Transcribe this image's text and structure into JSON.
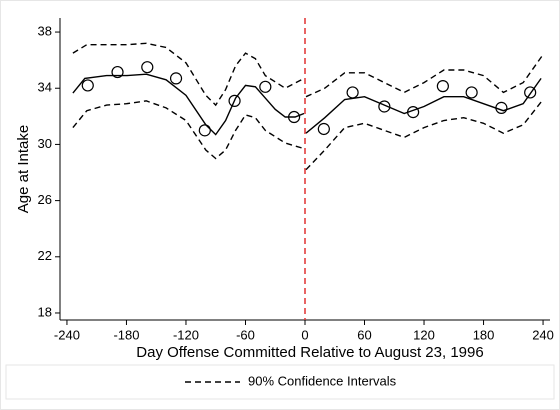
{
  "chart_data": {
    "type": "line",
    "x_label": "Day Offense Committed Relative to August 23, 1996",
    "y_label": "Age at Intake",
    "xlim": [
      -247,
      247
    ],
    "ylim": [
      17.5,
      39
    ],
    "xticks": [
      -240,
      -180,
      -120,
      -60,
      0,
      60,
      120,
      180,
      240
    ],
    "yticks": [
      18,
      22,
      26,
      30,
      34,
      38
    ],
    "grid": false,
    "legend": "bottom",
    "vline": {
      "x": 0,
      "color": "#e03030"
    },
    "series": [
      {
        "type": "scatter",
        "color": "#000000",
        "x": [
          -219,
          -189,
          -159,
          -130,
          -101,
          -71,
          -40,
          -11,
          19,
          48,
          80,
          109,
          139,
          168,
          198,
          227
        ],
        "values": [
          34.2,
          35.15,
          35.5,
          34.7,
          31.0,
          33.1,
          34.1,
          31.95,
          31.1,
          33.7,
          32.7,
          32.3,
          34.15,
          33.7,
          32.6,
          33.7
        ]
      },
      {
        "type": "line",
        "color": "#000000",
        "dash": false,
        "x": [
          -234,
          -222,
          -200,
          -180,
          -160,
          -140,
          -120,
          -100,
          -90,
          -80,
          -70,
          -60,
          -50,
          -40,
          -30,
          -20,
          -10,
          -1,
          0,
          1,
          20,
          40,
          60,
          80,
          100,
          120,
          140,
          160,
          180,
          200,
          220,
          238
        ],
        "values": [
          33.65,
          34.7,
          34.9,
          34.9,
          35.0,
          34.6,
          33.5,
          31.4,
          30.7,
          31.7,
          33.3,
          34.2,
          34.1,
          33.3,
          32.5,
          31.95,
          31.95,
          32.2,
          null,
          30.8,
          31.9,
          33.2,
          33.4,
          32.8,
          32.2,
          32.7,
          33.4,
          33.4,
          32.9,
          32.4,
          32.9,
          34.7
        ]
      },
      {
        "type": "line",
        "color": "#000000",
        "dash": true,
        "name": "90% Confidence Intervals",
        "x": [
          -234,
          -220,
          -180,
          -160,
          -140,
          -120,
          -100,
          -90,
          -80,
          -70,
          -60,
          -50,
          -40,
          -20,
          -1,
          0,
          1,
          20,
          40,
          60,
          80,
          100,
          120,
          140,
          160,
          180,
          200,
          220,
          240
        ],
        "values": [
          36.5,
          37.1,
          37.1,
          37.2,
          36.9,
          35.8,
          33.5,
          32.8,
          33.9,
          35.6,
          36.5,
          36.1,
          34.9,
          34.0,
          34.7,
          null,
          33.4,
          34.0,
          35.1,
          35.1,
          34.4,
          33.7,
          34.4,
          35.3,
          35.3,
          34.9,
          33.7,
          34.4,
          36.4
        ]
      },
      {
        "type": "line",
        "color": "#000000",
        "dash": true,
        "x": [
          -234,
          -220,
          -200,
          -180,
          -160,
          -140,
          -120,
          -100,
          -90,
          -80,
          -70,
          -60,
          -50,
          -40,
          -20,
          -1,
          0,
          1,
          20,
          40,
          60,
          80,
          100,
          120,
          140,
          160,
          180,
          200,
          220,
          240
        ],
        "values": [
          31.2,
          32.4,
          32.8,
          32.9,
          33.1,
          32.6,
          31.7,
          29.6,
          29.0,
          29.6,
          31.0,
          32.1,
          31.9,
          31.0,
          30.1,
          29.7,
          null,
          28.2,
          29.6,
          31.2,
          31.5,
          31.0,
          30.5,
          31.2,
          31.7,
          31.9,
          31.5,
          30.8,
          31.4,
          33.2
        ]
      }
    ]
  }
}
